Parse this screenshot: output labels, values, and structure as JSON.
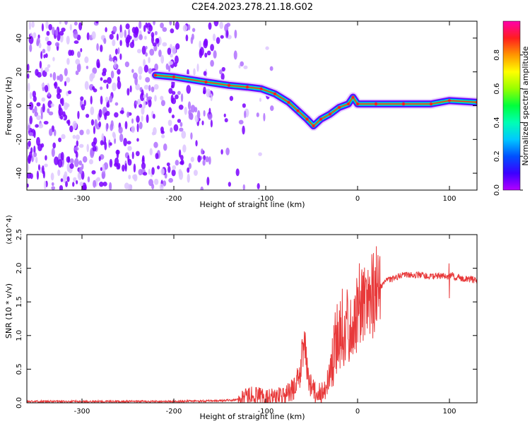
{
  "title": "C2E4.2023.278.21.18.G02",
  "chart_data": [
    {
      "type": "heatmap",
      "xlabel": "Height of straight line (km)",
      "ylabel": "Frequency (Hz)",
      "xlim": [
        -360,
        130
      ],
      "ylim": [
        -50,
        50
      ],
      "xticks": [
        -300,
        -200,
        -100,
        0,
        100
      ],
      "yticks": [
        -40,
        -20,
        0,
        20,
        40
      ],
      "colorbar": {
        "label": "Normalized spectral amplitude",
        "range": [
          0,
          1
        ],
        "ticks": [
          "0.0",
          "0.2",
          "0.4",
          "0.6",
          "0.8"
        ],
        "colormap": [
          "#b400ff",
          "#3c00ff",
          "#0050ff",
          "#00c8ff",
          "#00ffb4",
          "#00ff3c",
          "#96ff00",
          "#ffff00",
          "#ff9600",
          "#ff1e1e",
          "#ff00aa"
        ]
      },
      "ridge": {
        "x": [
          -220,
          -200,
          -165,
          -140,
          -120,
          -105,
          -90,
          -75,
          -65,
          -55,
          -48,
          -40,
          -30,
          -20,
          -10,
          -5,
          0,
          20,
          50,
          80,
          100,
          130
        ],
        "y": [
          18,
          17,
          14,
          12,
          11,
          10,
          7,
          2,
          -3,
          -8,
          -12,
          -8,
          -5,
          -1,
          1,
          5,
          1,
          1,
          1,
          1,
          3,
          2
        ]
      }
    },
    {
      "type": "line",
      "xlabel": "Height of straight line (km)",
      "ylabel": "SNR (10 * v/v)",
      "yscale_label": "(x10^4)",
      "xlim": [
        -360,
        130
      ],
      "ylim": [
        0,
        2.5
      ],
      "xticks": [
        -300,
        -200,
        -100,
        0,
        100
      ],
      "yticks": [
        "0.0",
        "0.5",
        "1.0",
        "1.5",
        "2.0",
        "2.5"
      ],
      "color": "#e8393a",
      "x": [
        -360,
        -300,
        -250,
        -200,
        -150,
        -125,
        -115,
        -105,
        -90,
        -80,
        -70,
        -62,
        -58,
        -55,
        -52,
        -50,
        -45,
        -40,
        -35,
        -30,
        -25,
        -20,
        -15,
        -10,
        -5,
        0,
        5,
        10,
        15,
        20,
        30,
        40,
        50,
        60,
        70,
        80,
        90,
        100,
        103,
        106,
        110,
        120,
        130
      ],
      "y": [
        0.02,
        0.02,
        0.02,
        0.02,
        0.03,
        0.05,
        0.12,
        0.08,
        0.1,
        0.1,
        0.2,
        0.45,
        1.0,
        0.5,
        0.3,
        0.25,
        0.12,
        0.15,
        0.22,
        0.4,
        0.8,
        1.1,
        0.9,
        1.2,
        1.0,
        1.4,
        1.5,
        1.6,
        1.55,
        1.65,
        1.8,
        1.85,
        1.9,
        1.9,
        1.9,
        1.88,
        1.88,
        1.87,
        1.9,
        1.85,
        1.86,
        1.84,
        1.82
      ]
    }
  ]
}
